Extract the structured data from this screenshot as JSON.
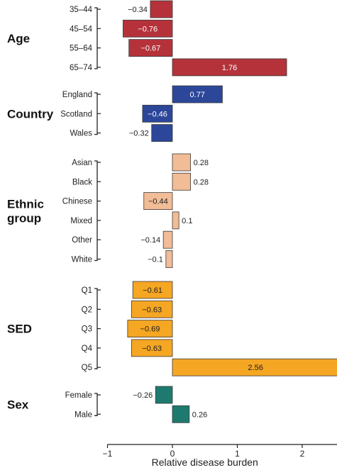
{
  "chart_data": {
    "type": "bar",
    "orientation": "horizontal",
    "title": "",
    "xlabel": "Relative disease burden",
    "xlim": [
      -1,
      2.55
    ],
    "xticks": [
      -1,
      0,
      1,
      2
    ],
    "xtick_labels": [
      "−1",
      "0",
      "1",
      "2"
    ],
    "groups": [
      {
        "name": "Age",
        "color": "#b5323a",
        "categories": [
          "35–44",
          "45–54",
          "55–64",
          "65–74"
        ],
        "values": [
          -0.34,
          -0.76,
          -0.67,
          1.76
        ],
        "value_labels": [
          "−0.34",
          "−0.76",
          "−0.67",
          "1.76"
        ]
      },
      {
        "name": "Country",
        "color": "#2c4799",
        "categories": [
          "England",
          "Scotland",
          "Wales"
        ],
        "values": [
          0.77,
          -0.46,
          -0.32
        ],
        "value_labels": [
          "0.77",
          "−0.46",
          "−0.32"
        ]
      },
      {
        "name": "Ethnic group",
        "name_lines": [
          "Ethnic",
          "group"
        ],
        "color": "#f2bc97",
        "categories": [
          "Asian",
          "Black",
          "Chinese",
          "Mixed",
          "Other",
          "White"
        ],
        "values": [
          0.28,
          0.28,
          -0.44,
          0.1,
          -0.14,
          -0.1
        ],
        "value_labels": [
          "0.28",
          "0.28",
          "−0.44",
          "0.1",
          "−0.14",
          "−0.1"
        ]
      },
      {
        "name": "SED",
        "color": "#f5a623",
        "categories": [
          "Q1",
          "Q2",
          "Q3",
          "Q4",
          "Q5"
        ],
        "values": [
          -0.61,
          -0.63,
          -0.69,
          -0.63,
          2.56
        ],
        "value_labels": [
          "−0.61",
          "−0.63",
          "−0.69",
          "−0.63",
          "2.56"
        ]
      },
      {
        "name": "Sex",
        "color": "#1e7a6e",
        "categories": [
          "Female",
          "Male"
        ],
        "values": [
          -0.26,
          0.26
        ],
        "value_labels": [
          "−0.26",
          "0.26"
        ]
      }
    ]
  }
}
